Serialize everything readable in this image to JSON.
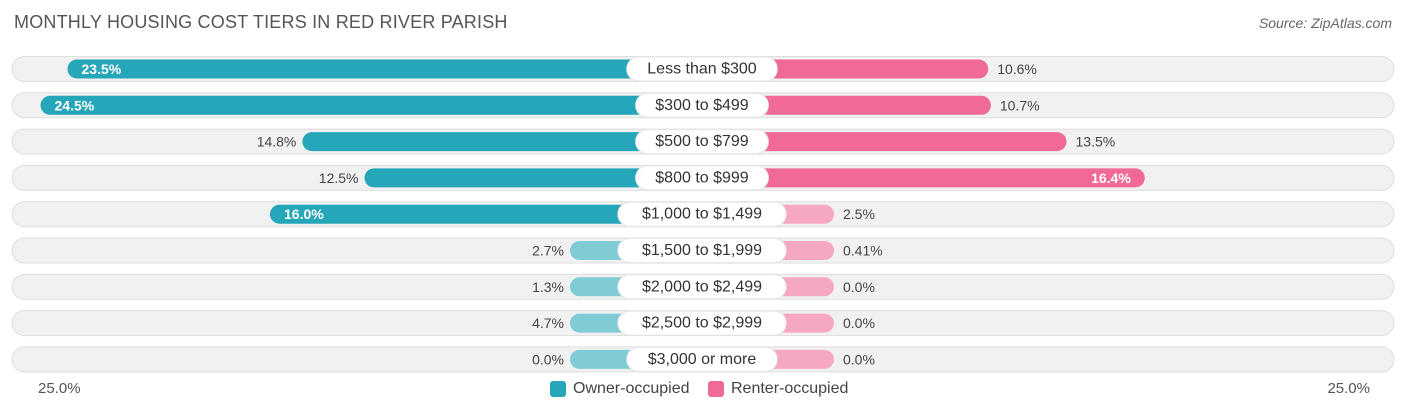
{
  "title": "MONTHLY HOUSING COST TIERS IN RED RIVER PARISH",
  "source": "Source: ZipAtlas.com",
  "colors": {
    "owner_strong": "#26a6b9",
    "owner_light": "#7fcbd6",
    "renter_strong": "#f06a95",
    "renter_light": "#f7a8c1",
    "track": "#f1f1f1"
  },
  "axis": {
    "left_label": "25.0%",
    "right_label": "25.0%"
  },
  "legend": {
    "owner": "Owner-occupied",
    "renter": "Renter-occupied"
  },
  "chart_data": {
    "type": "bar",
    "orientation": "horizontal-diverging",
    "xlim": [
      -25,
      25
    ],
    "categories": [
      "Less than $300",
      "$300 to $499",
      "$500 to $799",
      "$800 to $999",
      "$1,000 to $1,499",
      "$1,500 to $1,999",
      "$2,000 to $2,499",
      "$2,500 to $2,999",
      "$3,000 or more"
    ],
    "series": [
      {
        "name": "Owner-occupied",
        "values": [
          23.5,
          24.5,
          14.8,
          12.5,
          16.0,
          2.7,
          1.3,
          4.7,
          0.0
        ],
        "labels": [
          "23.5%",
          "24.5%",
          "14.8%",
          "12.5%",
          "16.0%",
          "2.7%",
          "1.3%",
          "4.7%",
          "0.0%"
        ]
      },
      {
        "name": "Renter-occupied",
        "values": [
          10.6,
          10.7,
          13.5,
          16.4,
          2.5,
          0.41,
          0.0,
          0.0,
          0.0
        ],
        "labels": [
          "10.6%",
          "10.7%",
          "13.5%",
          "16.4%",
          "2.5%",
          "0.41%",
          "0.0%",
          "0.0%",
          "0.0%"
        ]
      }
    ]
  }
}
